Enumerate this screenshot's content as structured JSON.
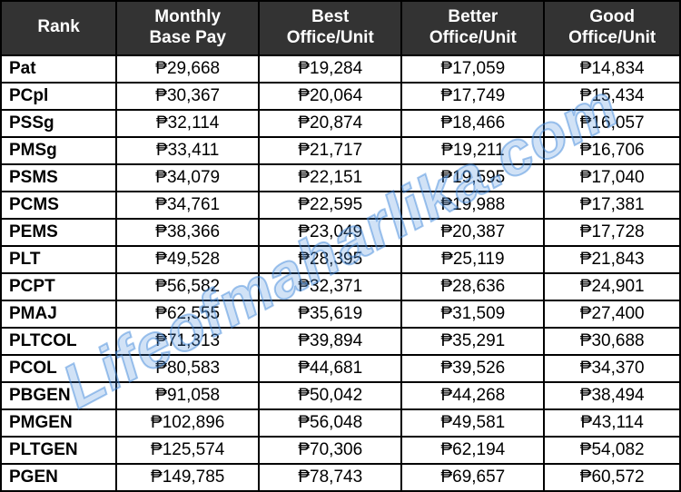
{
  "table": {
    "type": "table",
    "header_bg": "#333333",
    "header_fg": "#ffffff",
    "border_color": "#000000",
    "cell_bg": "#ffffff",
    "cell_fg": "#000000",
    "header_fontsize": 19,
    "cell_fontsize": 19,
    "currency_symbol": "₱",
    "columns": [
      {
        "label_line1": "Rank",
        "label_line2": "",
        "width_pct": 17,
        "align": "left",
        "bold": true
      },
      {
        "label_line1": "Monthly",
        "label_line2": "Base Pay",
        "width_pct": 21,
        "align": "center",
        "bold": false
      },
      {
        "label_line1": "Best",
        "label_line2": "Office/Unit",
        "width_pct": 21,
        "align": "center",
        "bold": false
      },
      {
        "label_line1": "Better",
        "label_line2": "Office/Unit",
        "width_pct": 21,
        "align": "center",
        "bold": false
      },
      {
        "label_line1": "Good",
        "label_line2": "Office/Unit",
        "width_pct": 20,
        "align": "center",
        "bold": false
      }
    ],
    "rows": [
      {
        "rank": "Pat",
        "monthly": "₱29,668",
        "best": "₱19,284",
        "better": "₱17,059",
        "good": "₱14,834"
      },
      {
        "rank": "PCpl",
        "monthly": "₱30,367",
        "best": "₱20,064",
        "better": "₱17,749",
        "good": "₱15,434"
      },
      {
        "rank": "PSSg",
        "monthly": "₱32,114",
        "best": "₱20,874",
        "better": "₱18,466",
        "good": "₱16,057"
      },
      {
        "rank": "PMSg",
        "monthly": "₱33,411",
        "best": "₱21,717",
        "better": "₱19,211",
        "good": "₱16,706"
      },
      {
        "rank": "PSMS",
        "monthly": "₱34,079",
        "best": "₱22,151",
        "better": "₱19,595",
        "good": "₱17,040"
      },
      {
        "rank": "PCMS",
        "monthly": "₱34,761",
        "best": "₱22,595",
        "better": "₱19,988",
        "good": "₱17,381"
      },
      {
        "rank": "PEMS",
        "monthly": "₱38,366",
        "best": "₱23,049",
        "better": "₱20,387",
        "good": "₱17,728"
      },
      {
        "rank": "PLT",
        "monthly": "₱49,528",
        "best": "₱28,395",
        "better": "₱25,119",
        "good": "₱21,843"
      },
      {
        "rank": "PCPT",
        "monthly": "₱56,582",
        "best": "₱32,371",
        "better": "₱28,636",
        "good": "₱24,901"
      },
      {
        "rank": "PMAJ",
        "monthly": "₱62,555",
        "best": "₱35,619",
        "better": "₱31,509",
        "good": "₱27,400"
      },
      {
        "rank": "PLTCOL",
        "monthly": "₱71,313",
        "best": "₱39,894",
        "better": "₱35,291",
        "good": "₱30,688"
      },
      {
        "rank": "PCOL",
        "monthly": "₱80,583",
        "best": "₱44,681",
        "better": "₱39,526",
        "good": "₱34,370"
      },
      {
        "rank": "PBGEN",
        "monthly": "₱91,058",
        "best": "₱50,042",
        "better": "₱44,268",
        "good": "₱38,494"
      },
      {
        "rank": "PMGEN",
        "monthly": "₱102,896",
        "best": "₱56,048",
        "better": "₱49,581",
        "good": "₱43,114"
      },
      {
        "rank": "PLTGEN",
        "monthly": "₱125,574",
        "best": "₱70,306",
        "better": "₱62,194",
        "good": "₱54,082"
      },
      {
        "rank": "PGEN",
        "monthly": "₱149,785",
        "best": "₱78,743",
        "better": "₱69,657",
        "good": "₱60,572"
      }
    ]
  },
  "watermark": {
    "text": "Lifeofmaharlika.com",
    "color": "rgba(70,140,220,0.25)",
    "stroke": "rgba(70,140,220,0.5)",
    "fontsize": 68,
    "rotation_deg": -28
  }
}
